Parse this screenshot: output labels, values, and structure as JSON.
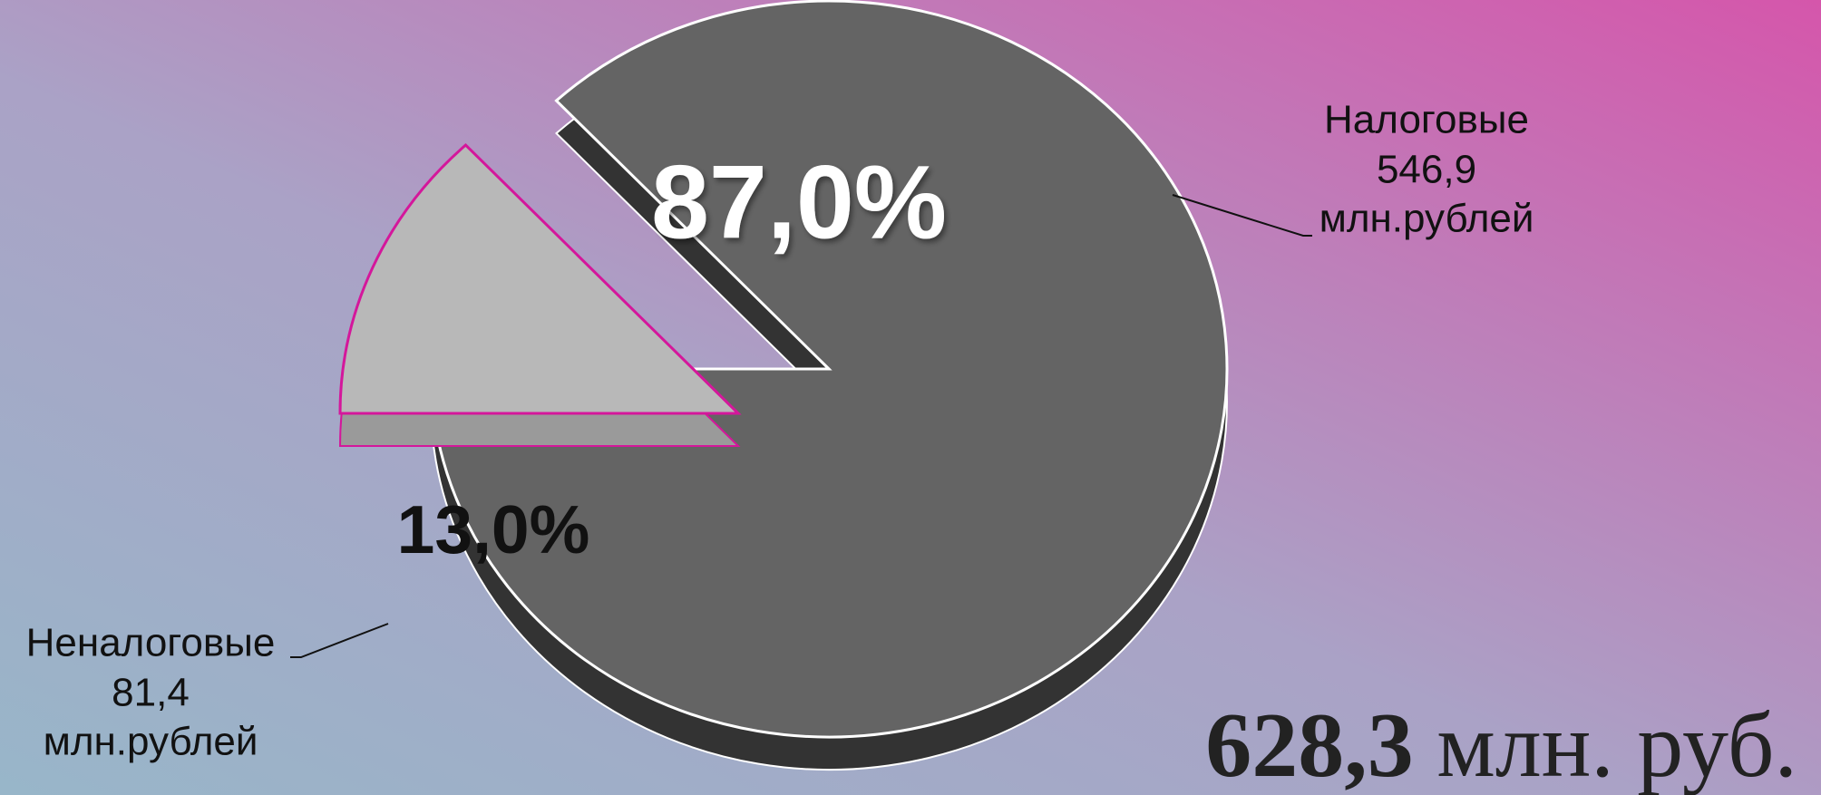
{
  "chart_data": {
    "type": "pie",
    "categories": [
      "Налоговые",
      "Неналоговые"
    ],
    "values": [
      87.0,
      13.0
    ],
    "value_labels": [
      "87,0%",
      "13,0%"
    ],
    "amounts": [
      546.9,
      81.4
    ],
    "amount_labels": [
      "546,9",
      "81,4"
    ],
    "unit": "млн.рублей",
    "colors": [
      "#646464",
      "#b8b8b8"
    ],
    "total": {
      "value": 628.3,
      "label": "628,3",
      "unit": "млн. руб."
    }
  }
}
